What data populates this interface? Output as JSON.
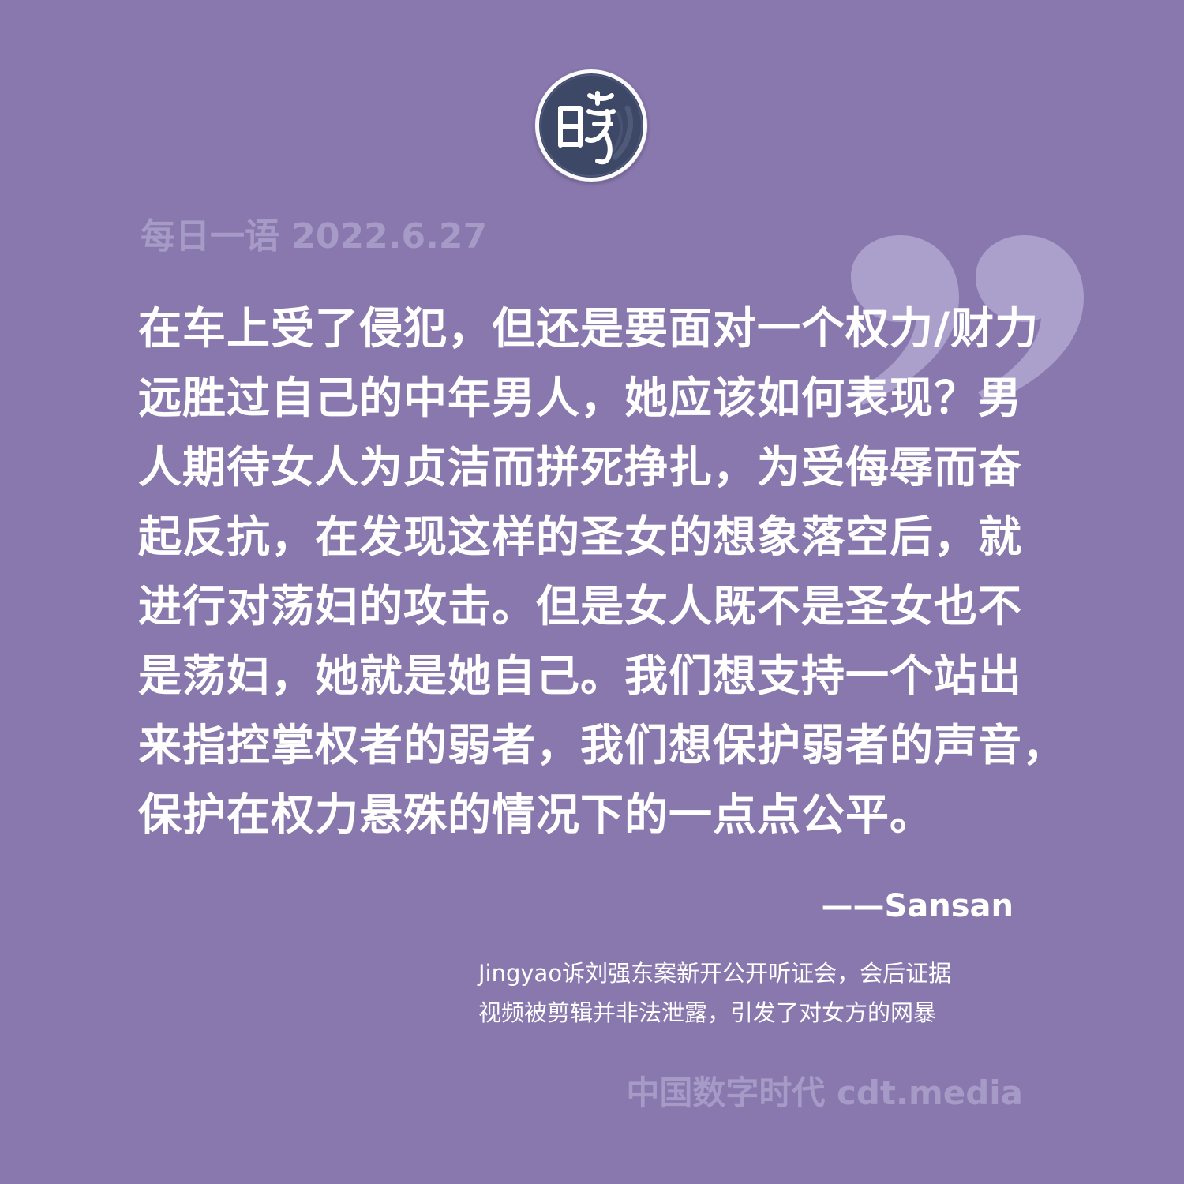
{
  "logo": {
    "name": "cdt-seal-logo",
    "glyph": "fabricated-tongue-seal-character"
  },
  "header": {
    "date_label": "每日一语 2022.6.27"
  },
  "quote": {
    "lines": [
      "在车上受了侵犯，但还是要面对一个权力/财力",
      "远胜过自己的中年男人，她应该如何表现？男",
      "人期待女人为贞洁而拼死挣扎，为受侮辱而奋",
      "起反抗，在发现这样的圣女的想象落空后，就",
      "进行对荡妇的攻击。但是女人既不是圣女也不",
      "是荡妇，她就是她自己。我们想支持一个站出",
      "来指控掌权者的弱者，我们想保护弱者的声音，",
      "保护在权力悬殊的情况下的一点点公平。"
    ],
    "attribution": "——Sansan"
  },
  "caption": {
    "lines": [
      "Jingyao诉刘强东案新开公开听证会，会后证据",
      "视频被剪辑并非法泄露，引发了对女方的网暴"
    ]
  },
  "footer": {
    "brand": "中国数字时代 cdt.media"
  },
  "colors": {
    "background": "#8878ad",
    "muted_text": "#a69ac6",
    "quote_mark": "#ab9fcb",
    "text": "#ffffff",
    "logo_fill": "#3d4766"
  }
}
